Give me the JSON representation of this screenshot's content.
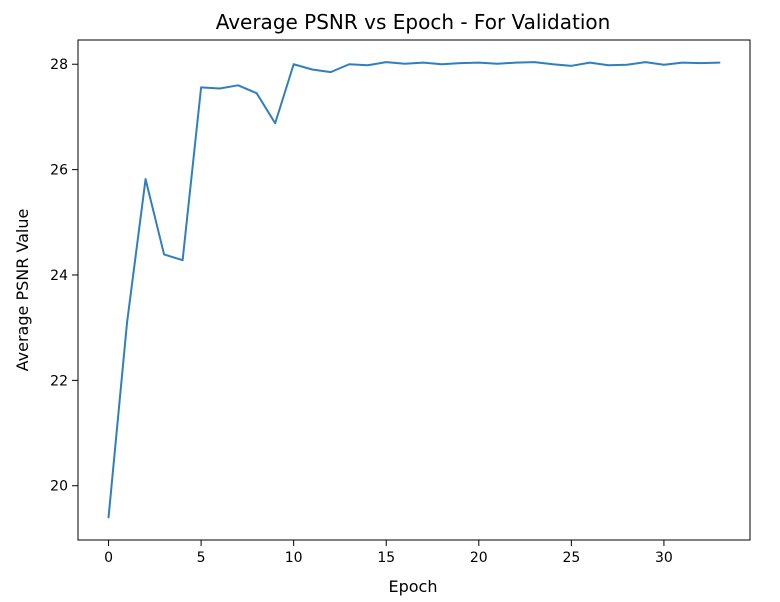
{
  "chart_data": {
    "type": "line",
    "title": "Average PSNR vs Epoch - For Validation",
    "xlabel": "Epoch",
    "ylabel": "Average PSNR Value",
    "xlim": [
      -1.65,
      34.65
    ],
    "ylim": [
      18.97,
      28.46
    ],
    "xticks": [
      0,
      5,
      10,
      15,
      20,
      25,
      30
    ],
    "xtick_labels": [
      "0",
      "5",
      "10",
      "15",
      "20",
      "25",
      "30"
    ],
    "yticks": [
      20,
      22,
      24,
      26,
      28
    ],
    "ytick_labels": [
      "20",
      "22",
      "24",
      "26",
      "28"
    ],
    "grid": false,
    "line_color": "#2f7fbf",
    "series": [
      {
        "x": [
          0,
          1,
          2,
          3,
          4,
          5,
          6,
          7,
          8,
          9,
          10,
          11,
          12,
          13,
          14,
          15,
          16,
          17,
          18,
          19,
          20,
          21,
          22,
          23,
          24,
          25,
          26,
          27,
          28,
          29,
          30,
          31,
          32,
          33
        ],
        "values": [
          19.4,
          23.1,
          25.82,
          24.39,
          24.28,
          27.56,
          27.54,
          27.6,
          27.45,
          26.88,
          28.0,
          27.9,
          27.85,
          28.0,
          27.98,
          28.04,
          28.01,
          28.03,
          28.0,
          28.02,
          28.03,
          28.01,
          28.03,
          28.04,
          28.0,
          27.97,
          28.03,
          27.98,
          27.99,
          28.04,
          27.99,
          28.03,
          28.02,
          28.03
        ]
      }
    ]
  }
}
